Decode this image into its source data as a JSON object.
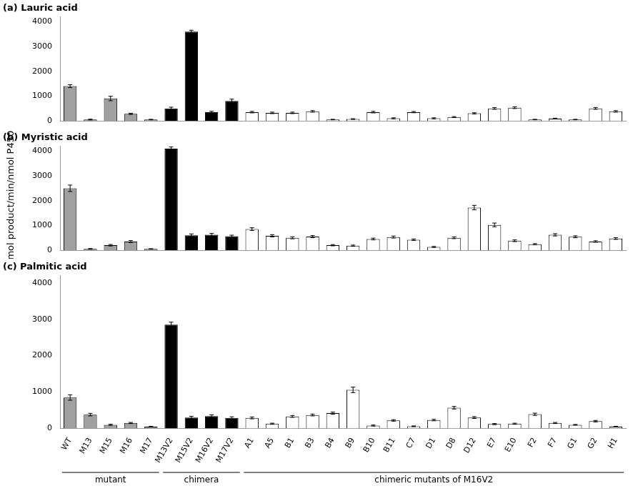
{
  "chart_data": [
    {
      "type": "bar",
      "title": "(a) Lauric acid",
      "categories": [
        "WT",
        "M13",
        "M15",
        "M16",
        "M17",
        "M13V2",
        "M15V2",
        "M16V2",
        "M17V2",
        "A1",
        "A5",
        "B1",
        "B3",
        "B4",
        "B9",
        "B10",
        "B11",
        "C7",
        "D1",
        "D8",
        "D12",
        "E7",
        "E10",
        "F2",
        "F7",
        "G1",
        "G2",
        "H1"
      ],
      "values": [
        1400,
        50,
        900,
        280,
        50,
        500,
        3600,
        350,
        800,
        350,
        320,
        320,
        380,
        50,
        70,
        350,
        100,
        350,
        100,
        150,
        300,
        500,
        530,
        50,
        90,
        50,
        500,
        380
      ],
      "errors": [
        60,
        15,
        90,
        25,
        10,
        50,
        60,
        35,
        75,
        30,
        30,
        30,
        30,
        10,
        15,
        30,
        20,
        25,
        20,
        20,
        25,
        35,
        35,
        10,
        15,
        10,
        35,
        30
      ],
      "colors": [
        "#a0a0a0",
        "#a0a0a0",
        "#a0a0a0",
        "#a0a0a0",
        "#a0a0a0",
        "#000000",
        "#000000",
        "#000000",
        "#000000",
        "#ffffff",
        "#ffffff",
        "#ffffff",
        "#ffffff",
        "#ffffff",
        "#ffffff",
        "#ffffff",
        "#ffffff",
        "#ffffff",
        "#ffffff",
        "#ffffff",
        "#ffffff",
        "#ffffff",
        "#ffffff",
        "#ffffff",
        "#ffffff",
        "#ffffff",
        "#ffffff",
        "#ffffff"
      ],
      "ylim": [
        0,
        4200
      ],
      "yticks": [
        0,
        1000,
        2000,
        3000,
        4000
      ],
      "grid": false,
      "tick_labels": "y"
    },
    {
      "type": "bar",
      "title": "(b) Myristic acid",
      "ylabel": "nmol product/min/nmol P450",
      "categories": [
        "WT",
        "M13",
        "M15",
        "M16",
        "M17",
        "M13V2",
        "M15V2",
        "M16V2",
        "M17V2",
        "A1",
        "A5",
        "B1",
        "B3",
        "B4",
        "B9",
        "B10",
        "B11",
        "C7",
        "D1",
        "D8",
        "D12",
        "E7",
        "E10",
        "F2",
        "F7",
        "G1",
        "G2",
        "H1"
      ],
      "values": [
        2500,
        50,
        200,
        350,
        50,
        4100,
        600,
        620,
        560,
        850,
        580,
        500,
        550,
        200,
        180,
        450,
        530,
        420,
        130,
        500,
        1720,
        1020,
        380,
        240,
        620,
        540,
        350,
        470
      ],
      "errors": [
        130,
        15,
        30,
        40,
        10,
        70,
        55,
        55,
        45,
        55,
        45,
        40,
        40,
        25,
        25,
        35,
        40,
        30,
        20,
        35,
        90,
        75,
        35,
        25,
        45,
        40,
        30,
        35
      ],
      "colors": [
        "#a0a0a0",
        "#a0a0a0",
        "#a0a0a0",
        "#a0a0a0",
        "#a0a0a0",
        "#000000",
        "#000000",
        "#000000",
        "#000000",
        "#ffffff",
        "#ffffff",
        "#ffffff",
        "#ffffff",
        "#ffffff",
        "#ffffff",
        "#ffffff",
        "#ffffff",
        "#ffffff",
        "#ffffff",
        "#ffffff",
        "#ffffff",
        "#ffffff",
        "#ffffff",
        "#ffffff",
        "#ffffff",
        "#ffffff",
        "#ffffff",
        "#ffffff"
      ],
      "ylim": [
        0,
        4200
      ],
      "yticks": [
        0,
        1000,
        2000,
        3000,
        4000
      ],
      "grid": false,
      "tick_labels": "y"
    },
    {
      "type": "bar",
      "title": "(c) Palmitic acid",
      "categories": [
        "WT",
        "M13",
        "M15",
        "M16",
        "M17",
        "M13V2",
        "M15V2",
        "M16V2",
        "M17V2",
        "A1",
        "A5",
        "B1",
        "B3",
        "B4",
        "B9",
        "B10",
        "B11",
        "C7",
        "D1",
        "D8",
        "D12",
        "E7",
        "E10",
        "F2",
        "F7",
        "G1",
        "G2",
        "H1"
      ],
      "values": [
        850,
        380,
        100,
        150,
        50,
        2850,
        300,
        340,
        290,
        290,
        130,
        330,
        370,
        420,
        1060,
        80,
        220,
        60,
        230,
        570,
        300,
        120,
        130,
        390,
        150,
        100,
        200,
        50
      ],
      "errors": [
        75,
        35,
        15,
        15,
        10,
        70,
        35,
        35,
        30,
        25,
        15,
        25,
        25,
        30,
        75,
        15,
        20,
        10,
        20,
        35,
        25,
        15,
        15,
        30,
        15,
        10,
        20,
        10
      ],
      "colors": [
        "#a0a0a0",
        "#a0a0a0",
        "#a0a0a0",
        "#a0a0a0",
        "#a0a0a0",
        "#000000",
        "#000000",
        "#000000",
        "#000000",
        "#ffffff",
        "#ffffff",
        "#ffffff",
        "#ffffff",
        "#ffffff",
        "#ffffff",
        "#ffffff",
        "#ffffff",
        "#ffffff",
        "#ffffff",
        "#ffffff",
        "#ffffff",
        "#ffffff",
        "#ffffff",
        "#ffffff",
        "#ffffff",
        "#ffffff",
        "#ffffff",
        "#ffffff"
      ],
      "ylim": [
        0,
        4200
      ],
      "yticks": [
        0,
        1000,
        2000,
        3000,
        4000
      ],
      "grid": false,
      "annotations": [
        {
          "text": "mutant",
          "start": "WT",
          "end": "M17"
        },
        {
          "text": "chimera",
          "start": "M13V2",
          "end": "M17V2"
        },
        {
          "text": "chimeric mutants of M16V2",
          "start": "A1",
          "end": "H1"
        }
      ]
    }
  ]
}
